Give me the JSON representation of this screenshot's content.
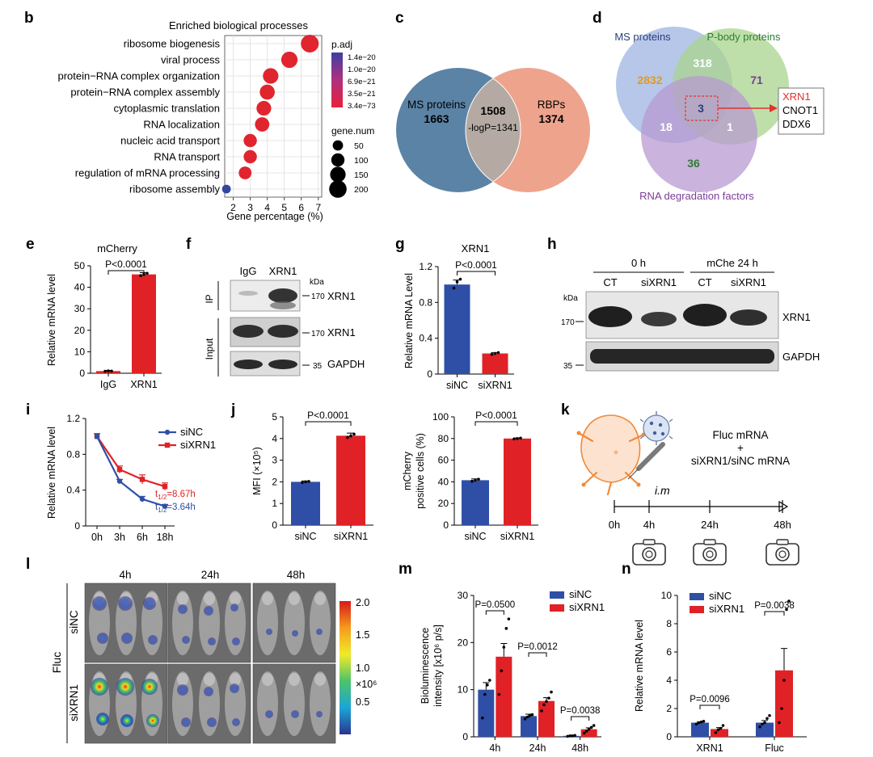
{
  "colors": {
    "blue": "#2f4fa6",
    "red": "#e02226",
    "venn_blue": "#5b83a6",
    "venn_salmon": "#eea38d",
    "venn_overlap": "#b0a6a0",
    "d_blue": "#9db4e3",
    "d_green": "#a9d48e",
    "d_purple": "#b89ad0",
    "text_blue": "#2a3f7a",
    "text_green": "#2e7d32",
    "text_purple": "#7a3d99",
    "text_orange": "#e39a1f"
  },
  "panels": {
    "b": "b",
    "c": "c",
    "d": "d",
    "e": "e",
    "f": "f",
    "g": "g",
    "h": "h",
    "i": "i",
    "j": "j",
    "k": "k",
    "l": "l",
    "m": "m",
    "n": "n"
  },
  "chart_data": [
    {
      "id": "b",
      "type": "scatter",
      "title": "Enriched biological processes",
      "xlabel": "Gene percentage (%)",
      "categories": [
        "ribosome biogenesis",
        "viral process",
        "protein−RNA complex organization",
        "protein−RNA complex assembly",
        "cytoplasmic translation",
        "RNA localization",
        "nucleic acid transport",
        "RNA transport",
        "regulation of mRNA processing",
        "ribosome assembly"
      ],
      "x": [
        6.5,
        5.3,
        4.2,
        4.0,
        3.8,
        3.7,
        3.0,
        3.0,
        2.7,
        1.6
      ],
      "size": [
        210,
        170,
        150,
        140,
        130,
        125,
        100,
        100,
        90,
        30
      ],
      "xticks": [
        "2",
        "3",
        "4",
        "5",
        "6",
        "7"
      ],
      "xlim": [
        1.5,
        7.2
      ],
      "legend_color_title": "p.adj",
      "legend_color_ticks": [
        "1.4e−20",
        "1.0e−20",
        "6.9e−21",
        "3.5e−21",
        "3.4e−73"
      ],
      "legend_size_title": "gene.num",
      "legend_size_ticks": [
        "50",
        "100",
        "150",
        "200"
      ],
      "grid": true
    },
    {
      "id": "c",
      "type": "venn",
      "sets": [
        {
          "name": "MS proteins",
          "only": "1663"
        },
        {
          "name": "RBPs",
          "only": "1374"
        }
      ],
      "overlap": "1508",
      "stat": "-logP=1341"
    },
    {
      "id": "d",
      "type": "venn",
      "sets": [
        {
          "name": "MS proteins",
          "only": "2832"
        },
        {
          "name": "P-body proteins",
          "only": "71"
        },
        {
          "name": "RNA degradation factors",
          "only": "36"
        }
      ],
      "ab": "318",
      "ac": "18",
      "bc": "1",
      "abc": "3",
      "callout": [
        "XRN1",
        "CNOT1",
        "DDX6"
      ]
    },
    {
      "id": "e",
      "type": "bar",
      "title": "mCherry",
      "ylabel": "Relative mRNA level",
      "categories": [
        "IgG",
        "XRN1"
      ],
      "values": [
        1.0,
        46.0
      ],
      "err": [
        0.3,
        0.8
      ],
      "points": [
        [
          0.9,
          1.1,
          1.0
        ],
        [
          45.4,
          46.0,
          46.5
        ]
      ],
      "ylim": [
        0,
        50
      ],
      "yticks": [
        "0",
        "10",
        "20",
        "30",
        "40",
        "50"
      ],
      "pval": "P<0.0001"
    },
    {
      "id": "g",
      "type": "bar",
      "title": "XRN1",
      "ylabel": "Relative mRNA Level",
      "categories": [
        "siNC",
        "siXRN1"
      ],
      "values": [
        1.0,
        0.23
      ],
      "err": [
        0.05,
        0.01
      ],
      "points": [
        [
          0.96,
          1.03,
          1.06
        ],
        [
          0.22,
          0.23,
          0.24
        ]
      ],
      "ylim": [
        0,
        1.2
      ],
      "yticks": [
        "0",
        "0.4",
        "0.8",
        "1.2"
      ],
      "pval": "P<0.0001"
    },
    {
      "id": "i",
      "type": "line",
      "ylabel": "Relative mRNA level",
      "x": [
        "0h",
        "3h",
        "6h",
        "18h"
      ],
      "series": [
        {
          "name": "siNC",
          "values": [
            1.0,
            0.5,
            0.3,
            0.22
          ],
          "err": [
            0.03,
            0.02,
            0.03,
            0.02
          ]
        },
        {
          "name": "siXRN1",
          "values": [
            1.0,
            0.63,
            0.52,
            0.44
          ],
          "err": [
            0.03,
            0.04,
            0.05,
            0.04
          ]
        }
      ],
      "ylim": [
        0,
        1.2
      ],
      "yticks": [
        "0",
        "0.4",
        "0.8",
        "1.2"
      ],
      "halflife_siXRN1": "=8.67h",
      "halflife_siNC": "=3.64h",
      "halflife_sub": "1/2",
      "halflife_prefix": "t"
    },
    {
      "id": "j1",
      "type": "bar",
      "ylabel": "MFI (×10⁵)",
      "categories": [
        "siNC",
        "siXRN1"
      ],
      "values": [
        2.0,
        4.13
      ],
      "err": [
        0.04,
        0.12
      ],
      "points": [
        [
          1.97,
          2.0,
          2.02
        ],
        [
          4.05,
          4.12,
          4.2
        ]
      ],
      "ylim": [
        0,
        5
      ],
      "yticks": [
        "0",
        "1",
        "2",
        "3",
        "4",
        "5"
      ],
      "pval": "P<0.0001"
    },
    {
      "id": "j2",
      "type": "bar",
      "ylabel_line1": "mCherry",
      "ylabel_line2": "positive cells (%)",
      "categories": [
        "siNC",
        "siXRN1"
      ],
      "values": [
        41.5,
        80.0
      ],
      "err": [
        1.2,
        0.5
      ],
      "points": [
        [
          40.5,
          41.5,
          42.4
        ],
        [
          79.6,
          80.0,
          80.4
        ]
      ],
      "ylim": [
        0,
        100
      ],
      "yticks": [
        "0",
        "20",
        "40",
        "60",
        "80",
        "100"
      ],
      "pval": "P<0.0001"
    },
    {
      "id": "m",
      "type": "bar",
      "ylabel_line1": "Bioluminescence",
      "ylabel_line2": "intensity [x10⁶ p/s]",
      "categories": [
        "4h",
        "24h",
        "48h"
      ],
      "series": [
        {
          "name": "siNC",
          "values": [
            10.0,
            4.4,
            0.2
          ],
          "err": [
            1.5,
            0.4,
            0.05
          ]
        },
        {
          "name": "siXRN1",
          "values": [
            17.0,
            7.6,
            1.6
          ],
          "err": [
            2.8,
            0.7,
            0.3
          ]
        }
      ],
      "points_siNC": [
        [
          4,
          9,
          11,
          12
        ],
        [
          3.8,
          4.2,
          4.5,
          4.7
        ],
        [
          0.1,
          0.2,
          0.2,
          0.3
        ]
      ],
      "points_siXRN1": [
        [
          9,
          14,
          19,
          23,
          25
        ],
        [
          5.5,
          6.8,
          7.5,
          8.2,
          9.5
        ],
        [
          0.8,
          1.2,
          1.6,
          2.0,
          2.4
        ]
      ],
      "ylim": [
        0,
        30
      ],
      "yticks": [
        "0",
        "10",
        "20",
        "30"
      ],
      "pvals": [
        "P=0.0500",
        "P=0.0012",
        "P=0.0038"
      ]
    },
    {
      "id": "n",
      "type": "bar",
      "ylabel": "Relative mRNA level",
      "categories": [
        "XRN1",
        "Fluc"
      ],
      "series": [
        {
          "name": "siNC",
          "values": [
            1.0,
            1.0
          ],
          "err": [
            0.05,
            0.15
          ]
        },
        {
          "name": "siXRN1",
          "values": [
            0.55,
            4.7
          ],
          "err": [
            0.1,
            1.55
          ]
        }
      ],
      "points_siNC": [
        [
          0.9,
          1.0,
          1.05,
          1.1
        ],
        [
          0.7,
          0.9,
          1.0,
          1.3,
          1.5
        ]
      ],
      "points_siXRN1": [
        [
          0.3,
          0.5,
          0.6,
          0.8
        ],
        [
          1.0,
          2.0,
          4.0,
          9.0,
          9.6
        ]
      ],
      "ylim": [
        0,
        10
      ],
      "yticks": [
        "0",
        "2",
        "4",
        "6",
        "8",
        "10"
      ],
      "pvals": [
        "P=0.0096",
        "P=0.0038"
      ]
    }
  ],
  "blot_f": {
    "cols": [
      "IgG",
      "XRN1"
    ],
    "kda": "kDa",
    "ip_label": "IP",
    "input_label": "Input",
    "rows": [
      {
        "marker": "170",
        "protein": "XRN1"
      },
      {
        "marker": "170",
        "protein": "XRN1"
      },
      {
        "marker": "35",
        "protein": "GAPDH"
      }
    ]
  },
  "blot_h": {
    "group1": "0 h",
    "group2": "mChe 24 h",
    "cols": [
      "CT",
      "siXRN1",
      "CT",
      "siXRN1"
    ],
    "kda": "kDa",
    "rows": [
      {
        "marker": "170",
        "protein": "XRN1"
      },
      {
        "marker": "35",
        "protein": "GAPDH"
      }
    ]
  },
  "schematic_k": {
    "line1": "Fluc mRNA",
    "plus": "+",
    "line2": "siXRN1/siNC mRNA",
    "route": "i.m",
    "times": [
      "0h",
      "4h",
      "24h",
      "48h"
    ]
  },
  "imaging_l": {
    "times": [
      "4h",
      "24h",
      "48h"
    ],
    "rows": [
      "siNC",
      "siXRN1"
    ],
    "side": "Fluc",
    "scale_ticks": [
      "2.0",
      "1.5",
      "1.0",
      "0.5"
    ],
    "scale_unit": "×10⁶"
  }
}
